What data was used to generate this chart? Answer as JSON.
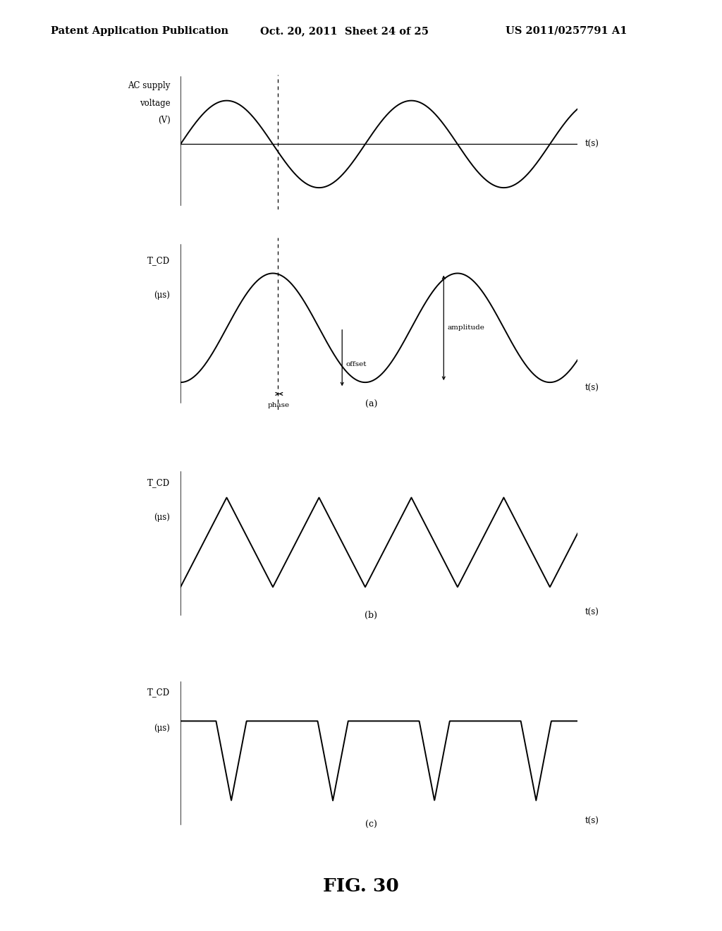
{
  "bg_color": "#ffffff",
  "header_text": "Patent Application Publication",
  "header_date": "Oct. 20, 2011  Sheet 24 of 25",
  "header_patent": "US 2011/0257791 A1",
  "fig_label": "FIG. 30",
  "panel_a_top": {
    "ylabel1": "AC supply",
    "ylabel2": "voltage",
    "ylabel3": "(V)",
    "xlabel": "t(s)",
    "sublabel": ""
  },
  "panel_a_bot": {
    "ylabel1": "T_CD",
    "ylabel2": "(μs)",
    "xlabel": "t(s)",
    "sublabel": "(a)"
  },
  "panel_b": {
    "ylabel1": "T_CD",
    "ylabel2": "(μs)",
    "xlabel": "t(s)",
    "sublabel": "(b)"
  },
  "panel_c": {
    "ylabel1": "T_CD",
    "ylabel2": "(μs)",
    "xlabel": "t(s)",
    "sublabel": "(c)"
  }
}
